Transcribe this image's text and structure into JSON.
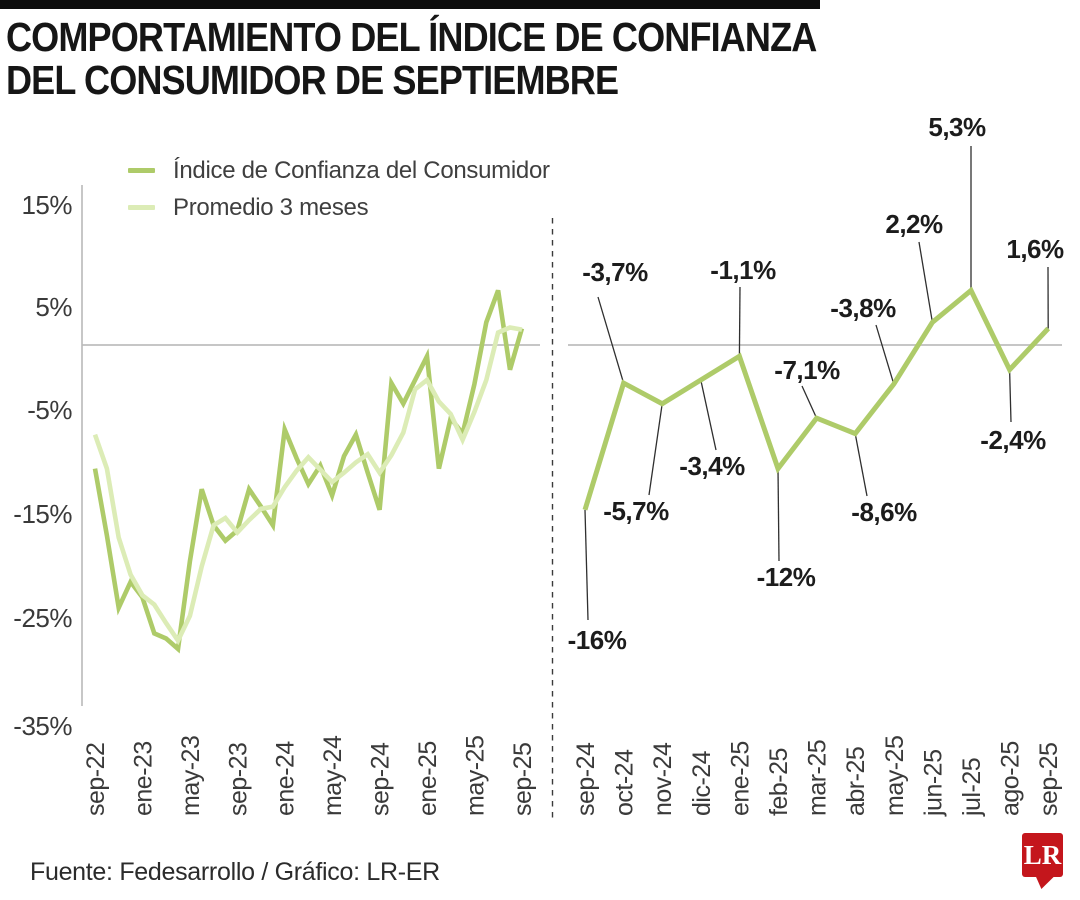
{
  "title": {
    "line1": "COMPORTAMIENTO DEL ÍNDICE DE CONFIANZA",
    "line2": "DEL CONSUMIDOR DE SEPTIEMBRE"
  },
  "legend": {
    "items": [
      {
        "label": "Índice de Confianza del Consumidor",
        "color": "#aecb69"
      },
      {
        "label": "Promedio 3 meses",
        "color": "#dcecb6"
      }
    ]
  },
  "footer": {
    "source": "Fuente: Fedesarrollo / Gráfico: LR-ER",
    "logo_text": "LR",
    "logo_color": "#c4161c"
  },
  "colors": {
    "icc_line": "#aecb69",
    "avg_line": "#dcecb6",
    "axis": "#b9b9b9",
    "zero_line": "#c6c6c6",
    "callout": "#2f2f2f",
    "divider": "#3a3a3a",
    "label_text": "#3a3a3a",
    "data_label_text": "#1c1c1c"
  },
  "chart_data": [
    {
      "type": "line",
      "name": "historical-panel",
      "title": "Comportamiento del Índice de Confianza del Consumidor de Septiembre",
      "ylim": [
        -35,
        15
      ],
      "ytick_labels": [
        "15%",
        "5%",
        "-5%",
        "-15%",
        "-25%",
        "-35%"
      ],
      "ytick_values": [
        15,
        5,
        -5,
        -15,
        -25,
        -35
      ],
      "grid": "zero line only",
      "legend_position": "top-left",
      "x": [
        "sep-22",
        "oct-22",
        "nov-22",
        "dic-22",
        "ene-23",
        "feb-23",
        "mar-23",
        "abr-23",
        "may-23",
        "jun-23",
        "jul-23",
        "ago-23",
        "sep-23",
        "oct-23",
        "nov-23",
        "dic-23",
        "ene-24",
        "feb-24",
        "mar-24",
        "abr-24",
        "may-24",
        "jun-24",
        "jul-24",
        "ago-24",
        "sep-24",
        "oct-24",
        "nov-24",
        "dic-24",
        "ene-25",
        "feb-25",
        "mar-25",
        "abr-25",
        "may-25",
        "jun-25",
        "jul-25",
        "ago-25",
        "sep-25"
      ],
      "xtick_labels_shown": [
        "sep-22",
        "ene-23",
        "may-23",
        "sep-23",
        "ene-24",
        "may-24",
        "sep-24",
        "ene-25",
        "may-25",
        "sep-25"
      ],
      "series": [
        {
          "name": "Índice de Confianza del Consumidor",
          "values": [
            -12,
            -18.5,
            -25.5,
            -23,
            -24.5,
            -28,
            -28.5,
            -29.5,
            -21,
            -14,
            -17.5,
            -19,
            -18,
            -14,
            -15.7,
            -17.5,
            -8.2,
            -11,
            -13.5,
            -11.7,
            -14.6,
            -10.8,
            -8.7,
            -12.4,
            -16,
            -3.7,
            -5.7,
            -3.4,
            -1.1,
            -12,
            -7.1,
            -8.6,
            -3.8,
            2.2,
            5.3,
            -2.4,
            1.6
          ]
        },
        {
          "name": "Promedio 3 meses",
          "values": [
            -8.7,
            -12,
            -18.7,
            -22.3,
            -24.3,
            -25.2,
            -27,
            -28.7,
            -26.3,
            -21.5,
            -17.5,
            -16.8,
            -18.2,
            -17,
            -15.9,
            -15.7,
            -13.8,
            -12.2,
            -10.9,
            -12.1,
            -13.3,
            -12.4,
            -11.4,
            -10.6,
            -12.4,
            -10.7,
            -8.5,
            -4.3,
            -3.4,
            -5.5,
            -6.7,
            -9.2,
            -6.5,
            -3.4,
            1.2,
            1.7,
            1.5
          ]
        }
      ]
    },
    {
      "type": "line",
      "name": "last-13-months-detail-panel",
      "ylim": [
        -35,
        15
      ],
      "grid": "zero line only",
      "categories": [
        "sep-24",
        "oct-24",
        "nov-24",
        "dic-24",
        "ene-25",
        "feb-25",
        "mar-25",
        "abr-25",
        "may-25",
        "jun-25",
        "jul-25",
        "ago-25",
        "sep-25"
      ],
      "series": [
        {
          "name": "Índice de Confianza del Consumidor",
          "values": [
            -16,
            -3.7,
            -5.7,
            -3.4,
            -1.1,
            -12,
            -7.1,
            -8.6,
            -3.8,
            2.2,
            5.3,
            -2.4,
            1.6
          ]
        }
      ],
      "data_labels": [
        "-16%",
        "-3,7%",
        "-5,7%",
        "-3,4%",
        "-1,1%",
        "-12%",
        "-7,1%",
        "-8,6%",
        "-3,8%",
        "2,2%",
        "5,3%",
        "-2,4%",
        "1,6%"
      ]
    }
  ]
}
